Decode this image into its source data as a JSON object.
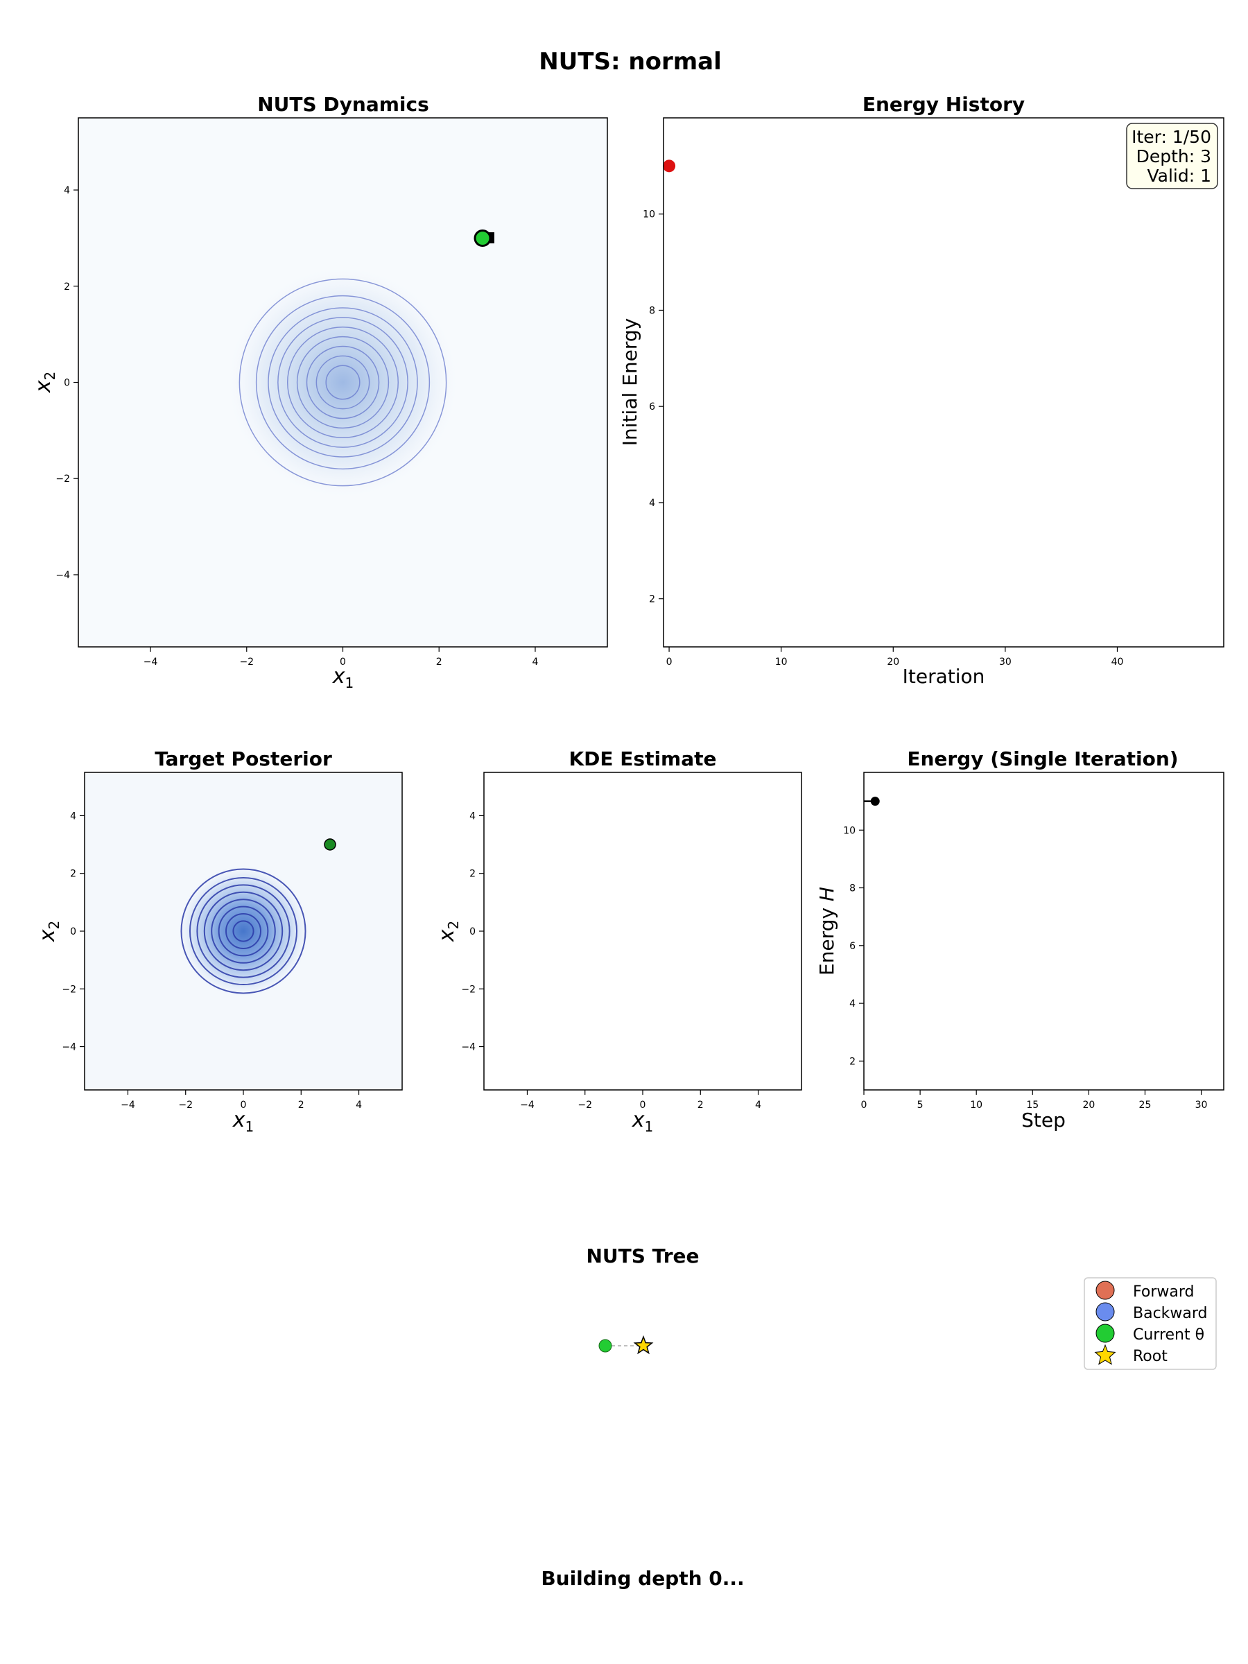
{
  "figure": {
    "suptitle": "NUTS: normal",
    "status_text": "Building depth 0..."
  },
  "colors": {
    "background": "#ffffff",
    "density_fill": "#f7fafd",
    "contour_dynamics": "#6677cc",
    "contour_posterior": "#2a3aa8",
    "energy_marker": "#dd1111",
    "current_theta": "#22cc33",
    "forward": "#e07055",
    "backward": "#6a8cee",
    "root": "#ffd700",
    "info_box_bg": "#ffffee"
  },
  "chart_data": [
    {
      "id": "nuts_dynamics",
      "type": "scatter",
      "title": "NUTS Dynamics",
      "xlabel": "x1",
      "ylabel": "x2",
      "xlim": [
        -5.5,
        5.5
      ],
      "ylim": [
        -5.5,
        5.5
      ],
      "xticks": [
        -4,
        -2,
        0,
        2,
        4
      ],
      "yticks": [
        -4,
        -2,
        0,
        2,
        4
      ],
      "contour_radii": [
        0.35,
        0.55,
        0.75,
        0.95,
        1.15,
        1.35,
        1.55,
        1.8,
        2.15
      ],
      "current_theta": [
        2.9,
        3.0
      ],
      "proposal_marker": [
        3.05,
        3.0
      ],
      "grid": false
    },
    {
      "id": "energy_history",
      "type": "scatter",
      "title": "Energy History",
      "xlabel": "Iteration",
      "ylabel": "Initial Energy",
      "xlim": [
        -0.5,
        49.5
      ],
      "ylim": [
        1.0,
        12.0
      ],
      "xticks": [
        0,
        10,
        20,
        30,
        40
      ],
      "yticks": [
        2,
        4,
        6,
        8,
        10
      ],
      "points": [
        {
          "x": 0,
          "y": 11.0
        }
      ],
      "info_box": [
        "Iter: 1/50",
        "Depth: 3",
        "Valid: 1"
      ],
      "info_box_location": "top-right",
      "grid": false
    },
    {
      "id": "target_posterior",
      "type": "scatter",
      "title": "Target Posterior",
      "xlabel": "x1",
      "ylabel": "x2",
      "xlim": [
        -5.5,
        5.5
      ],
      "ylim": [
        -5.5,
        5.5
      ],
      "xticks": [
        -4,
        -2,
        0,
        2,
        4
      ],
      "yticks": [
        -4,
        -2,
        0,
        2,
        4
      ],
      "contour_radii": [
        0.35,
        0.6,
        0.85,
        1.1,
        1.35,
        1.6,
        1.85,
        2.15
      ],
      "current_theta": [
        3.0,
        3.0
      ],
      "grid": false
    },
    {
      "id": "kde_estimate",
      "type": "scatter",
      "title": "KDE Estimate",
      "xlabel": "x1",
      "ylabel": "x2",
      "xlim": [
        -5.5,
        5.5
      ],
      "ylim": [
        -5.5,
        5.5
      ],
      "xticks": [
        -4,
        -2,
        0,
        2,
        4
      ],
      "yticks": [
        -4,
        -2,
        0,
        2,
        4
      ],
      "points": [],
      "grid": false
    },
    {
      "id": "energy_single_iteration",
      "type": "line",
      "title": "Energy (Single Iteration)",
      "xlabel": "Step",
      "ylabel": "Energy H",
      "xlim": [
        0,
        32
      ],
      "ylim": [
        1.0,
        12.0
      ],
      "xticks": [
        0,
        5,
        10,
        15,
        20,
        25,
        30
      ],
      "yticks": [
        2,
        4,
        6,
        8,
        10
      ],
      "points": [
        {
          "x": 0,
          "y": 11.0
        },
        {
          "x": 1,
          "y": 11.0
        }
      ],
      "grid": false
    },
    {
      "id": "nuts_tree",
      "type": "scatter",
      "title": "NUTS Tree",
      "nodes": [
        {
          "role": "current",
          "x": -1,
          "y": 0
        },
        {
          "role": "root",
          "x": 0,
          "y": 0
        }
      ],
      "edges": [
        [
          0,
          1
        ]
      ],
      "legend": [
        "Forward",
        "Backward",
        "Current θ",
        "Root"
      ],
      "legend_location": "top-right"
    }
  ]
}
